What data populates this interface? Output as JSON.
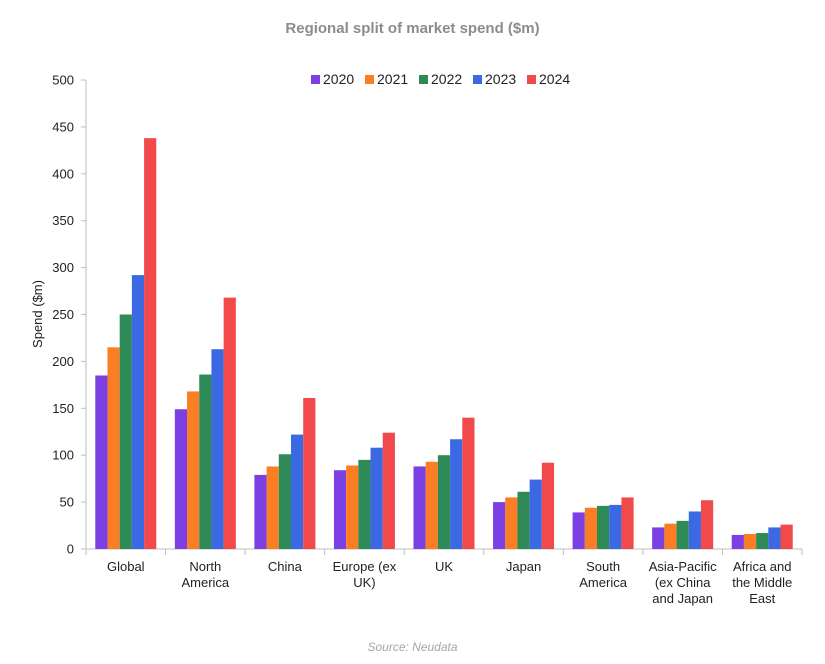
{
  "title": "Regional split of market spend ($m)",
  "source": "Source: Neudata",
  "chart_data": {
    "type": "bar",
    "title": "Regional split of market spend ($m)",
    "ylabel": "Spend ($m)",
    "xlabel": "",
    "ylim": [
      0,
      500
    ],
    "yticks": [
      0,
      50,
      100,
      150,
      200,
      250,
      300,
      350,
      400,
      450,
      500
    ],
    "grid": false,
    "legend_position": "top-center",
    "categories": [
      [
        "Global"
      ],
      [
        "North",
        "America"
      ],
      [
        "China"
      ],
      [
        "Europe (ex",
        "UK)"
      ],
      [
        "UK"
      ],
      [
        "Japan"
      ],
      [
        "South",
        "America"
      ],
      [
        "Asia-Pacific",
        "(ex China",
        "and Japan"
      ],
      [
        "Africa and",
        "the Middle",
        "East"
      ]
    ],
    "series": [
      {
        "name": "2020",
        "color": "#7b3fe4",
        "values": [
          185,
          149,
          79,
          84,
          88,
          50,
          39,
          23,
          15
        ]
      },
      {
        "name": "2021",
        "color": "#fb7d24",
        "values": [
          215,
          168,
          88,
          89,
          93,
          55,
          44,
          27,
          16
        ]
      },
      {
        "name": "2022",
        "color": "#2e8b57",
        "values": [
          250,
          186,
          101,
          95,
          100,
          61,
          46,
          30,
          17
        ]
      },
      {
        "name": "2023",
        "color": "#3b68e3",
        "values": [
          292,
          213,
          122,
          108,
          117,
          74,
          47,
          40,
          23
        ]
      },
      {
        "name": "2024",
        "color": "#f24a4a",
        "values": [
          438,
          268,
          161,
          124,
          140,
          92,
          55,
          52,
          26
        ]
      }
    ]
  }
}
